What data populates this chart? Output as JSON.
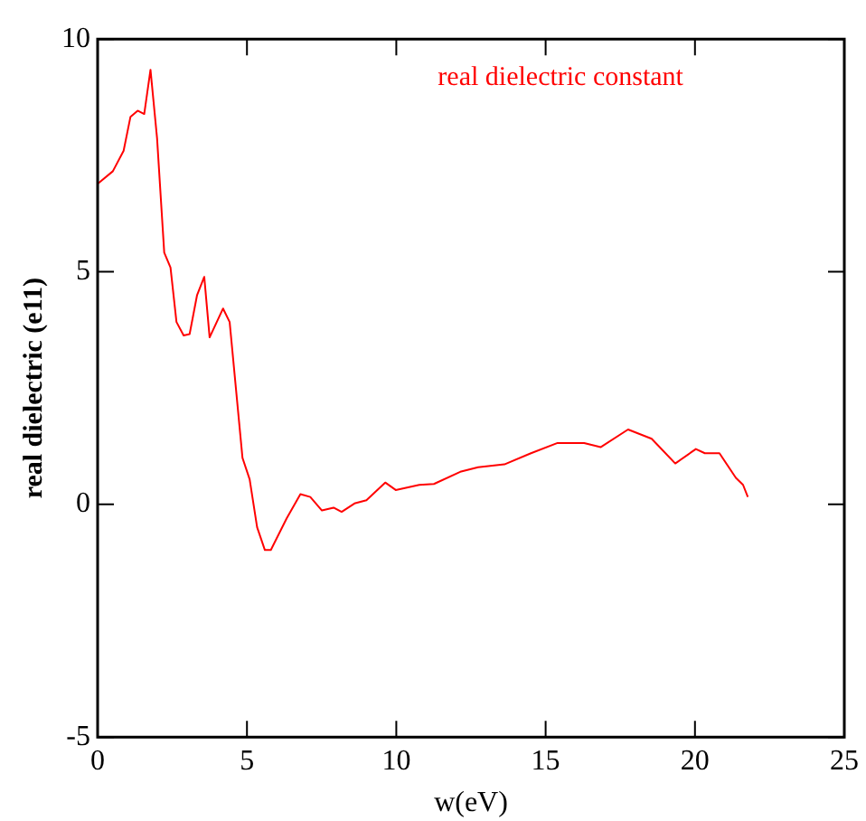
{
  "chart_data": {
    "type": "line",
    "xlabel": "w(eV)",
    "ylabel": "real dielectric (e11)",
    "annotations": [
      "real dielectric constant"
    ],
    "x": [
      0.02,
      0.51,
      0.87,
      1.1,
      1.34,
      1.56,
      1.77,
      1.99,
      2.23,
      2.44,
      2.64,
      2.88,
      3.08,
      3.33,
      3.57,
      3.75,
      4.2,
      4.42,
      4.85,
      5.09,
      5.34,
      5.6,
      5.8,
      6.33,
      6.79,
      7.12,
      7.51,
      7.9,
      8.17,
      8.6,
      9.0,
      9.63,
      9.98,
      10.77,
      11.26,
      12.14,
      12.74,
      13.62,
      14.51,
      15.4,
      16.29,
      16.84,
      17.76,
      18.55,
      19.34,
      20.03,
      20.33,
      20.82,
      21.37,
      21.61,
      21.77
    ],
    "series": [
      {
        "color": "#ff0000",
        "values": [
          6.9,
          7.16,
          7.6,
          8.33,
          8.46,
          8.39,
          9.34,
          7.87,
          5.41,
          5.09,
          3.92,
          3.63,
          3.66,
          4.5,
          4.89,
          3.59,
          4.21,
          3.92,
          1.0,
          0.54,
          -0.49,
          -0.98,
          -0.98,
          -0.3,
          0.22,
          0.16,
          -0.13,
          -0.07,
          -0.16,
          0.02,
          0.09,
          0.47,
          0.31,
          0.42,
          0.44,
          0.7,
          0.8,
          0.86,
          1.1,
          1.32,
          1.32,
          1.23,
          1.61,
          1.41,
          0.88,
          1.19,
          1.1,
          1.1,
          0.57,
          0.42,
          0.16
        ]
      }
    ],
    "xlim": [
      0,
      25
    ],
    "xticks": [
      0,
      5,
      10,
      15,
      20,
      25
    ],
    "ylim": [
      -5,
      10
    ],
    "yticks": [
      -5,
      0,
      5,
      10
    ],
    "legend": false,
    "grid": false,
    "marker": "none",
    "line_style": "solid"
  }
}
